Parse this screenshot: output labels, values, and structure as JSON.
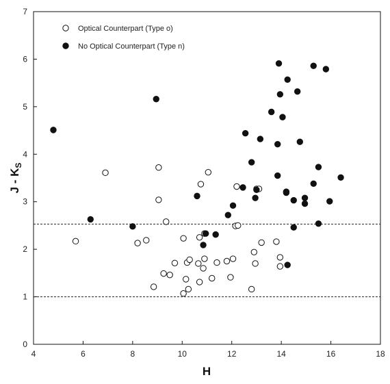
{
  "chart_data": {
    "type": "scatter",
    "title": "",
    "xlabel": "H",
    "ylabel_main": "J - K",
    "ylabel_sub": "S",
    "xlim": [
      4,
      18
    ],
    "ylim": [
      0,
      7
    ],
    "xticks": [
      4,
      6,
      8,
      10,
      12,
      14,
      16,
      18
    ],
    "yticks": [
      0,
      1,
      2,
      3,
      4,
      5,
      6,
      7
    ],
    "grid": false,
    "legend_position": "top-left",
    "reference_lines": [
      {
        "y": 2.53,
        "style": "dashed"
      },
      {
        "y": 1.0,
        "style": "dashed"
      }
    ],
    "series": [
      {
        "name": "Optical Counterpart (Type o)",
        "marker": "open-circle",
        "points": [
          [
            5.7,
            2.17
          ],
          [
            6.9,
            3.61
          ],
          [
            8.2,
            2.13
          ],
          [
            8.55,
            2.19
          ],
          [
            8.85,
            1.21
          ],
          [
            9.05,
            3.72
          ],
          [
            9.05,
            3.04
          ],
          [
            9.25,
            1.49
          ],
          [
            9.35,
            2.58
          ],
          [
            9.5,
            1.46
          ],
          [
            9.7,
            1.71
          ],
          [
            10.05,
            1.07
          ],
          [
            10.05,
            2.23
          ],
          [
            10.15,
            1.37
          ],
          [
            10.2,
            1.72
          ],
          [
            10.25,
            1.16
          ],
          [
            10.3,
            1.78
          ],
          [
            10.65,
            1.7
          ],
          [
            10.7,
            1.31
          ],
          [
            10.7,
            2.25
          ],
          [
            10.75,
            3.37
          ],
          [
            10.85,
            1.6
          ],
          [
            10.9,
            1.8
          ],
          [
            10.9,
            2.33
          ],
          [
            11.05,
            3.62
          ],
          [
            11.2,
            1.39
          ],
          [
            11.4,
            1.72
          ],
          [
            11.8,
            1.75
          ],
          [
            11.95,
            1.41
          ],
          [
            12.05,
            1.8
          ],
          [
            12.15,
            2.49
          ],
          [
            12.2,
            3.32
          ],
          [
            12.25,
            2.5
          ],
          [
            12.8,
            1.16
          ],
          [
            12.9,
            1.94
          ],
          [
            12.95,
            1.7
          ],
          [
            13.0,
            3.27
          ],
          [
            13.1,
            3.27
          ],
          [
            13.2,
            2.14
          ],
          [
            13.8,
            2.16
          ],
          [
            13.95,
            1.83
          ],
          [
            13.95,
            1.64
          ]
        ]
      },
      {
        "name": "No Optical Counterpart (Type n)",
        "marker": "filled-circle",
        "points": [
          [
            4.8,
            4.51
          ],
          [
            6.3,
            2.63
          ],
          [
            8.0,
            2.48
          ],
          [
            8.95,
            5.16
          ],
          [
            10.6,
            3.12
          ],
          [
            10.85,
            2.09
          ],
          [
            10.95,
            2.33
          ],
          [
            11.35,
            2.31
          ],
          [
            11.85,
            2.72
          ],
          [
            12.05,
            2.92
          ],
          [
            12.45,
            3.3
          ],
          [
            12.55,
            4.44
          ],
          [
            12.8,
            3.83
          ],
          [
            12.95,
            3.08
          ],
          [
            13.0,
            3.25
          ],
          [
            13.15,
            4.32
          ],
          [
            13.6,
            4.89
          ],
          [
            13.85,
            3.55
          ],
          [
            13.85,
            4.21
          ],
          [
            13.9,
            5.91
          ],
          [
            13.95,
            5.26
          ],
          [
            14.05,
            4.78
          ],
          [
            14.2,
            3.19
          ],
          [
            14.2,
            3.21
          ],
          [
            14.25,
            5.57
          ],
          [
            14.25,
            1.67
          ],
          [
            14.5,
            3.03
          ],
          [
            14.5,
            2.46
          ],
          [
            14.65,
            5.32
          ],
          [
            14.75,
            4.26
          ],
          [
            14.95,
            3.08
          ],
          [
            14.95,
            2.96
          ],
          [
            15.3,
            5.86
          ],
          [
            15.3,
            3.38
          ],
          [
            15.5,
            3.73
          ],
          [
            15.5,
            2.54
          ],
          [
            15.8,
            5.79
          ],
          [
            15.95,
            3.01
          ],
          [
            16.4,
            3.51
          ]
        ]
      }
    ]
  }
}
